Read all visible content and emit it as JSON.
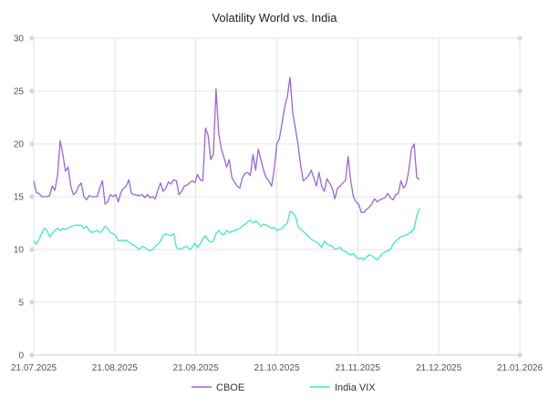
{
  "chart_data": {
    "type": "line",
    "title": "Volatility World vs. India",
    "xlabel": "",
    "ylabel": "",
    "ylim": [
      0,
      30
    ],
    "yticks": [
      0,
      5,
      10,
      15,
      20,
      25,
      30
    ],
    "x_tick_labels": [
      "21.07.2025",
      "21.08.2025",
      "21.09.2025",
      "21.10.2025",
      "21.11.2025",
      "21.12.2025",
      "21.01.2026"
    ],
    "x_range_days": [
      0,
      184
    ],
    "grid": true,
    "legend_position": "bottom-center",
    "series": [
      {
        "name": "CBOE",
        "color": "#9966dd",
        "points": [
          [
            0,
            16.5
          ],
          [
            1,
            15.4
          ],
          [
            2,
            15.3
          ],
          [
            3,
            15.0
          ],
          [
            5,
            15.0
          ],
          [
            6,
            15.1
          ],
          [
            7,
            16.0
          ],
          [
            8,
            15.6
          ],
          [
            9,
            17.0
          ],
          [
            10,
            20.3
          ],
          [
            11,
            19.0
          ],
          [
            12,
            17.4
          ],
          [
            13,
            17.8
          ],
          [
            14,
            16.0
          ],
          [
            15,
            15.2
          ],
          [
            16,
            15.4
          ],
          [
            17,
            16.0
          ],
          [
            18,
            16.3
          ],
          [
            19,
            15.0
          ],
          [
            20,
            14.7
          ],
          [
            21,
            15.1
          ],
          [
            22,
            15.0
          ],
          [
            24,
            15.0
          ],
          [
            25,
            15.8
          ],
          [
            26,
            16.5
          ],
          [
            27,
            14.3
          ],
          [
            28,
            14.5
          ],
          [
            29,
            15.2
          ],
          [
            30,
            15.0
          ],
          [
            31,
            15.2
          ],
          [
            32,
            14.5
          ],
          [
            33,
            15.4
          ],
          [
            34,
            15.8
          ],
          [
            35,
            16.0
          ],
          [
            36,
            16.6
          ],
          [
            37,
            15.3
          ],
          [
            38,
            15.2
          ],
          [
            40,
            15.1
          ],
          [
            41,
            15.2
          ],
          [
            42,
            14.9
          ],
          [
            43,
            15.2
          ],
          [
            44,
            14.9
          ],
          [
            45,
            15.0
          ],
          [
            46,
            14.8
          ],
          [
            47,
            15.6
          ],
          [
            48,
            16.3
          ],
          [
            49,
            15.5
          ],
          [
            50,
            15.8
          ],
          [
            51,
            16.4
          ],
          [
            52,
            16.2
          ],
          [
            53,
            16.6
          ],
          [
            54,
            16.5
          ],
          [
            55,
            15.2
          ],
          [
            56,
            15.5
          ],
          [
            57,
            16.0
          ],
          [
            58,
            16.1
          ],
          [
            59,
            16.3
          ],
          [
            60,
            16.5
          ],
          [
            61,
            16.3
          ],
          [
            62,
            17.1
          ],
          [
            63,
            16.6
          ],
          [
            64,
            16.5
          ],
          [
            65,
            21.5
          ],
          [
            66,
            20.8
          ],
          [
            67,
            18.5
          ],
          [
            68,
            19.0
          ],
          [
            69,
            25.2
          ],
          [
            70,
            21.0
          ],
          [
            71,
            19.5
          ],
          [
            72,
            18.7
          ],
          [
            73,
            17.8
          ],
          [
            74,
            18.5
          ],
          [
            75,
            16.8
          ],
          [
            76,
            16.4
          ],
          [
            77,
            16.0
          ],
          [
            78,
            15.8
          ],
          [
            79,
            16.8
          ],
          [
            80,
            17.2
          ],
          [
            81,
            17.3
          ],
          [
            82,
            17.0
          ],
          [
            83,
            19.0
          ],
          [
            84,
            17.5
          ],
          [
            85,
            19.5
          ],
          [
            86,
            18.5
          ],
          [
            87,
            17.5
          ],
          [
            88,
            16.8
          ],
          [
            89,
            16.5
          ],
          [
            90,
            16.0
          ],
          [
            91,
            17.5
          ],
          [
            92,
            20.0
          ],
          [
            93,
            20.5
          ],
          [
            94,
            22.0
          ],
          [
            95,
            23.5
          ],
          [
            96,
            24.5
          ],
          [
            97,
            26.3
          ],
          [
            98,
            23.0
          ],
          [
            99,
            21.5
          ],
          [
            100,
            20.0
          ],
          [
            101,
            18.0
          ],
          [
            102,
            16.5
          ],
          [
            103,
            16.7
          ],
          [
            104,
            17.0
          ],
          [
            105,
            17.5
          ],
          [
            106,
            16.8
          ],
          [
            107,
            16.0
          ],
          [
            108,
            17.3
          ],
          [
            109,
            16.0
          ],
          [
            110,
            15.5
          ],
          [
            111,
            16.7
          ],
          [
            112,
            16.3
          ],
          [
            113,
            15.8
          ],
          [
            114,
            14.8
          ],
          [
            115,
            15.8
          ],
          [
            116,
            16.0
          ],
          [
            117,
            16.3
          ],
          [
            118,
            16.5
          ],
          [
            119,
            18.8
          ],
          [
            120,
            16.5
          ],
          [
            121,
            15.0
          ],
          [
            122,
            14.5
          ],
          [
            123,
            14.3
          ],
          [
            124,
            13.5
          ],
          [
            125,
            13.5
          ],
          [
            126,
            13.8
          ],
          [
            127,
            14.0
          ],
          [
            128,
            14.3
          ],
          [
            129,
            14.8
          ],
          [
            130,
            14.5
          ],
          [
            131,
            14.7
          ],
          [
            132,
            14.8
          ],
          [
            133,
            14.9
          ],
          [
            134,
            15.3
          ],
          [
            135,
            14.9
          ],
          [
            136,
            14.7
          ],
          [
            137,
            15.2
          ],
          [
            138,
            15.3
          ],
          [
            139,
            16.5
          ],
          [
            140,
            15.8
          ],
          [
            141,
            16.2
          ],
          [
            142,
            17.5
          ],
          [
            143,
            19.5
          ],
          [
            144,
            20.0
          ],
          [
            145,
            16.8
          ],
          [
            146,
            16.6
          ]
        ]
      },
      {
        "name": "India VIX",
        "color": "#3ee6cc",
        "points": [
          [
            0,
            10.8
          ],
          [
            1,
            10.5
          ],
          [
            2,
            11.0
          ],
          [
            3,
            11.5
          ],
          [
            4,
            12.0
          ],
          [
            5,
            11.8
          ],
          [
            6,
            11.2
          ],
          [
            7,
            11.5
          ],
          [
            8,
            11.8
          ],
          [
            9,
            12.0
          ],
          [
            10,
            11.8
          ],
          [
            11,
            12.0
          ],
          [
            12,
            11.9
          ],
          [
            13,
            12.0
          ],
          [
            14,
            12.2
          ],
          [
            16,
            12.3
          ],
          [
            18,
            12.3
          ],
          [
            19,
            12.0
          ],
          [
            20,
            12.2
          ],
          [
            21,
            11.8
          ],
          [
            22,
            11.6
          ],
          [
            23,
            11.7
          ],
          [
            24,
            11.8
          ],
          [
            25,
            11.6
          ],
          [
            26,
            11.8
          ],
          [
            27,
            12.2
          ],
          [
            28,
            12.0
          ],
          [
            29,
            11.6
          ],
          [
            30,
            11.5
          ],
          [
            31,
            11.3
          ],
          [
            32,
            10.8
          ],
          [
            33,
            10.9
          ],
          [
            34,
            10.8
          ],
          [
            35,
            10.9
          ],
          [
            36,
            10.7
          ],
          [
            37,
            10.5
          ],
          [
            38,
            10.4
          ],
          [
            39,
            10.2
          ],
          [
            40,
            10.0
          ],
          [
            41,
            10.3
          ],
          [
            42,
            10.2
          ],
          [
            43,
            10.0
          ],
          [
            44,
            9.9
          ],
          [
            45,
            10.0
          ],
          [
            46,
            10.3
          ],
          [
            47,
            10.5
          ],
          [
            48,
            10.8
          ],
          [
            49,
            11.3
          ],
          [
            50,
            11.5
          ],
          [
            51,
            11.4
          ],
          [
            52,
            11.3
          ],
          [
            53,
            11.5
          ],
          [
            54,
            10.2
          ],
          [
            55,
            10.0
          ],
          [
            56,
            10.1
          ],
          [
            57,
            10.2
          ],
          [
            58,
            10.3
          ],
          [
            59,
            10.0
          ],
          [
            60,
            10.2
          ],
          [
            61,
            10.6
          ],
          [
            62,
            10.2
          ],
          [
            63,
            10.5
          ],
          [
            64,
            11.0
          ],
          [
            65,
            11.3
          ],
          [
            66,
            10.9
          ],
          [
            67,
            10.7
          ],
          [
            68,
            10.8
          ],
          [
            69,
            11.5
          ],
          [
            70,
            11.8
          ],
          [
            71,
            11.5
          ],
          [
            72,
            11.4
          ],
          [
            73,
            11.8
          ],
          [
            74,
            11.6
          ],
          [
            75,
            11.7
          ],
          [
            76,
            11.8
          ],
          [
            77,
            11.9
          ],
          [
            78,
            12.0
          ],
          [
            79,
            12.2
          ],
          [
            80,
            12.4
          ],
          [
            81,
            12.6
          ],
          [
            82,
            12.8
          ],
          [
            83,
            12.5
          ],
          [
            84,
            12.7
          ],
          [
            85,
            12.5
          ],
          [
            86,
            12.2
          ],
          [
            87,
            12.4
          ],
          [
            88,
            12.3
          ],
          [
            89,
            12.2
          ],
          [
            90,
            12.0
          ],
          [
            91,
            12.1
          ],
          [
            92,
            11.8
          ],
          [
            93,
            11.9
          ],
          [
            94,
            12.0
          ],
          [
            95,
            12.3
          ],
          [
            96,
            12.5
          ],
          [
            97,
            13.6
          ],
          [
            98,
            13.5
          ],
          [
            99,
            13.2
          ],
          [
            100,
            12.2
          ],
          [
            101,
            11.9
          ],
          [
            102,
            11.7
          ],
          [
            103,
            11.5
          ],
          [
            104,
            11.2
          ],
          [
            105,
            11.0
          ],
          [
            106,
            10.8
          ],
          [
            107,
            10.7
          ],
          [
            108,
            10.5
          ],
          [
            109,
            10.2
          ],
          [
            110,
            10.8
          ],
          [
            111,
            10.5
          ],
          [
            112,
            10.4
          ],
          [
            113,
            10.3
          ],
          [
            114,
            10.0
          ],
          [
            115,
            10.1
          ],
          [
            116,
            10.2
          ],
          [
            117,
            9.9
          ],
          [
            118,
            9.8
          ],
          [
            119,
            9.6
          ],
          [
            120,
            9.5
          ],
          [
            121,
            9.6
          ],
          [
            122,
            9.3
          ],
          [
            123,
            9.1
          ],
          [
            124,
            9.2
          ],
          [
            125,
            9.0
          ],
          [
            126,
            9.3
          ],
          [
            127,
            9.5
          ],
          [
            128,
            9.4
          ],
          [
            129,
            9.2
          ],
          [
            130,
            9.0
          ],
          [
            131,
            9.3
          ],
          [
            132,
            9.6
          ],
          [
            133,
            9.8
          ],
          [
            134,
            9.9
          ],
          [
            135,
            10.0
          ],
          [
            136,
            10.5
          ],
          [
            137,
            10.8
          ],
          [
            138,
            11.0
          ],
          [
            139,
            11.2
          ],
          [
            140,
            11.3
          ],
          [
            141,
            11.4
          ],
          [
            142,
            11.5
          ],
          [
            143,
            11.7
          ],
          [
            144,
            12.0
          ],
          [
            145,
            13.2
          ],
          [
            146,
            13.9
          ]
        ]
      }
    ]
  }
}
